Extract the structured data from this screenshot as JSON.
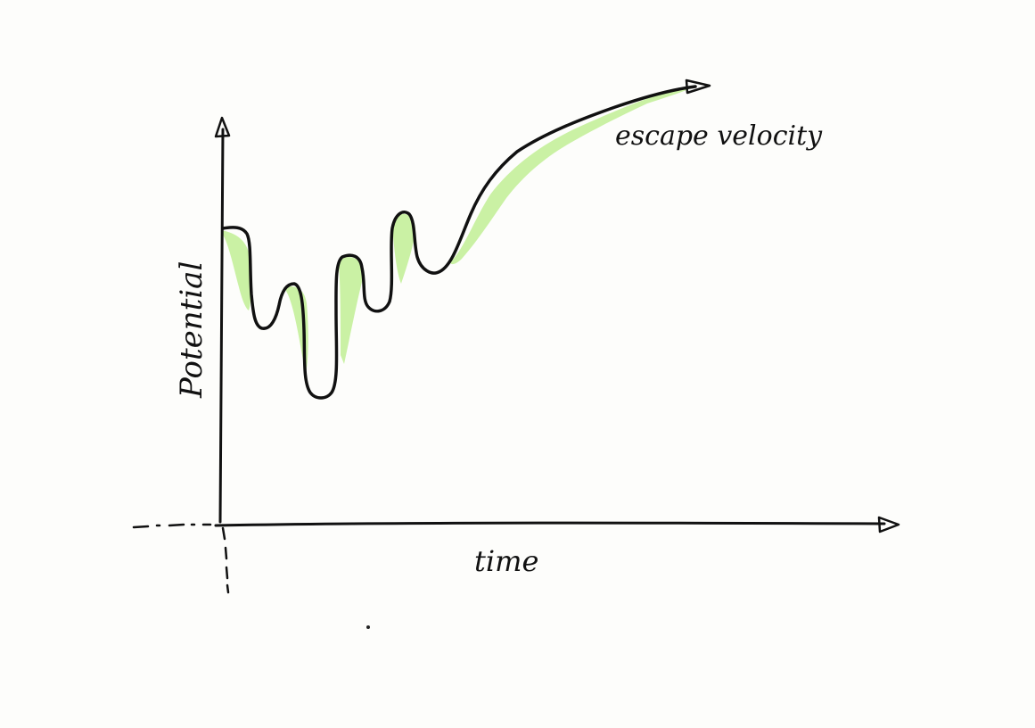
{
  "diagram": {
    "y_axis_label": "Potential",
    "x_axis_label": "time",
    "curve_annotation": "escape velocity",
    "colors": {
      "ink": "#111111",
      "highlight": "#c4ef9a",
      "paper": "#fdfdfb"
    }
  }
}
